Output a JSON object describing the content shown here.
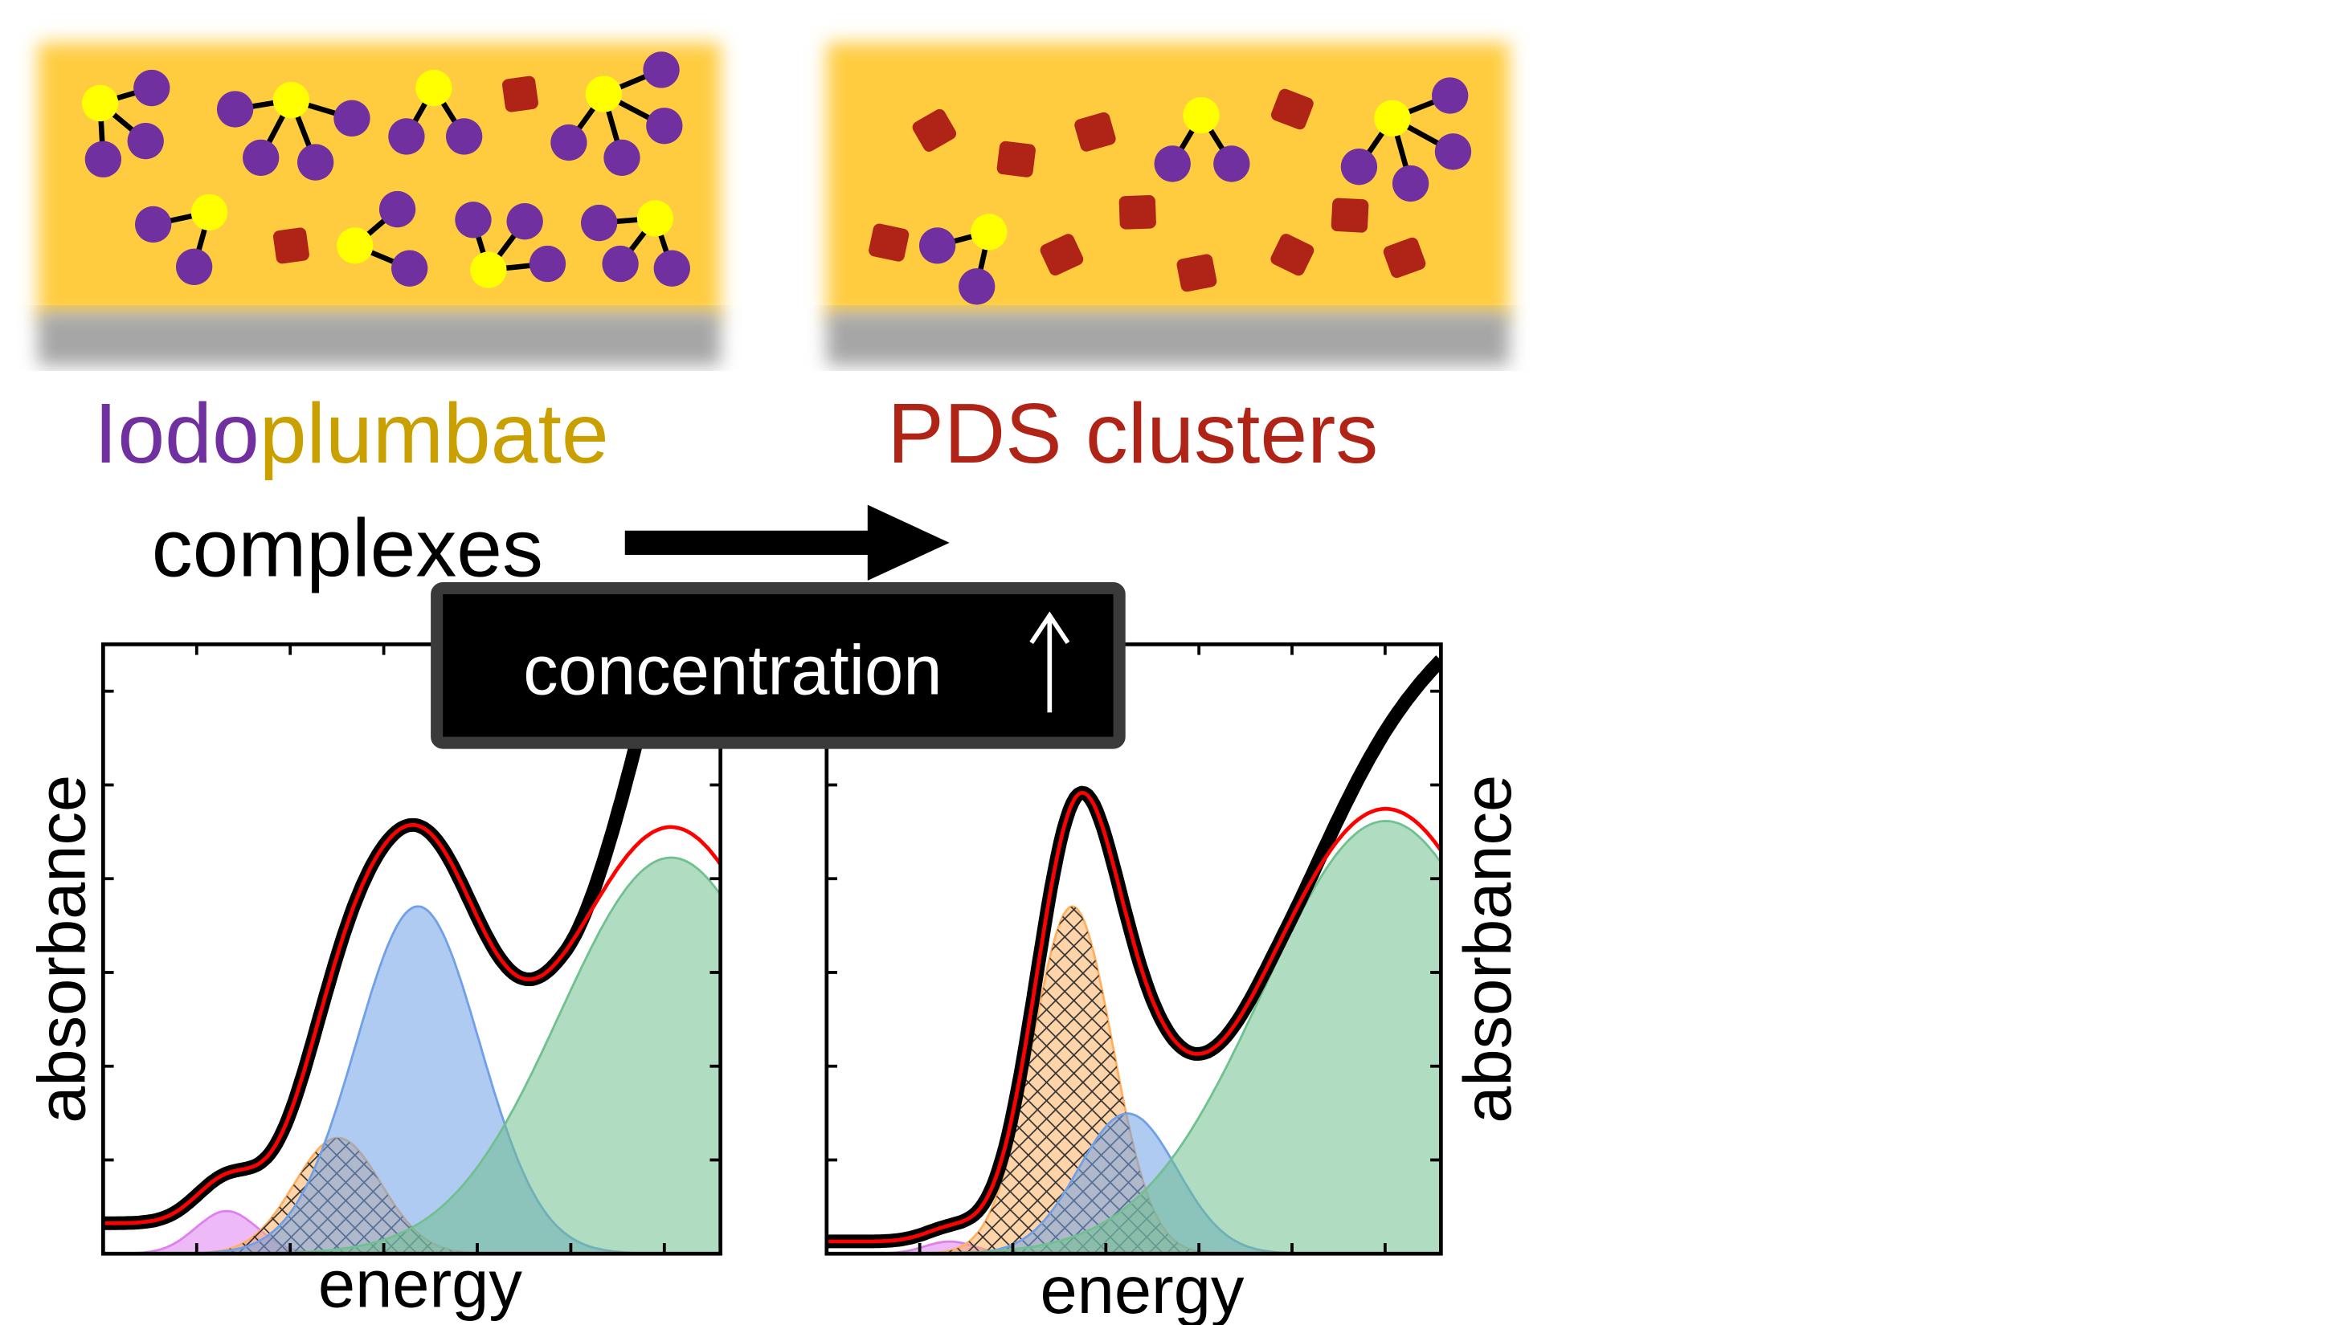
{
  "panels": {
    "left_label_part1": "Iodo",
    "left_label_part2": "plumbate",
    "left_label_line2": "complexes",
    "right_label": "PDS clusters"
  },
  "transition_box": {
    "label": "concentration",
    "arrow_glyph": "↑"
  },
  "colors": {
    "film": "#ffcc40",
    "substrate": "#a6a6a6",
    "iodide": "#7030a0",
    "lead": "#ffff00",
    "cluster": "#b02418",
    "iodo_text": "#7030a0",
    "plumbate_text": "#c9a000",
    "pds_text": "#b02418"
  },
  "chart_data": [
    {
      "type": "area",
      "title": "",
      "xlabel": "energy",
      "ylabel": "absorbance",
      "xlim": [
        0,
        1
      ],
      "ylim": [
        0,
        1
      ],
      "baseline": 0.05,
      "components": [
        {
          "name": "pink",
          "color": "#e080f0",
          "center": 0.2,
          "height": 0.07,
          "width": 0.05,
          "hatched": false
        },
        {
          "name": "orange",
          "color": "#ffb060",
          "center": 0.38,
          "height": 0.19,
          "width": 0.07,
          "hatched": true
        },
        {
          "name": "blue",
          "color": "#6fa0e8",
          "center": 0.51,
          "height": 0.57,
          "width": 0.1,
          "hatched": false
        },
        {
          "name": "green",
          "color": "#70c090",
          "center": 0.92,
          "height": 0.65,
          "width": 0.18,
          "hatched": false
        }
      ],
      "data_rise": {
        "start": 0.75,
        "k": 13
      }
    },
    {
      "type": "area",
      "title": "",
      "xlabel": "energy",
      "ylabel": "absorbance",
      "xlim": [
        0,
        1
      ],
      "ylim": [
        0,
        1
      ],
      "baseline": 0.02,
      "components": [
        {
          "name": "pink",
          "color": "#e080f0",
          "center": 0.2,
          "height": 0.02,
          "width": 0.04,
          "hatched": false
        },
        {
          "name": "orange",
          "color": "#ffb060",
          "center": 0.4,
          "height": 0.57,
          "width": 0.065,
          "hatched": true
        },
        {
          "name": "blue",
          "color": "#6fa0e8",
          "center": 0.49,
          "height": 0.23,
          "width": 0.08,
          "hatched": false
        },
        {
          "name": "green",
          "color": "#70c090",
          "center": 0.91,
          "height": 0.71,
          "width": 0.2,
          "hatched": false
        }
      ],
      "data_rise": {
        "start": 0.75,
        "k": 5
      }
    }
  ]
}
